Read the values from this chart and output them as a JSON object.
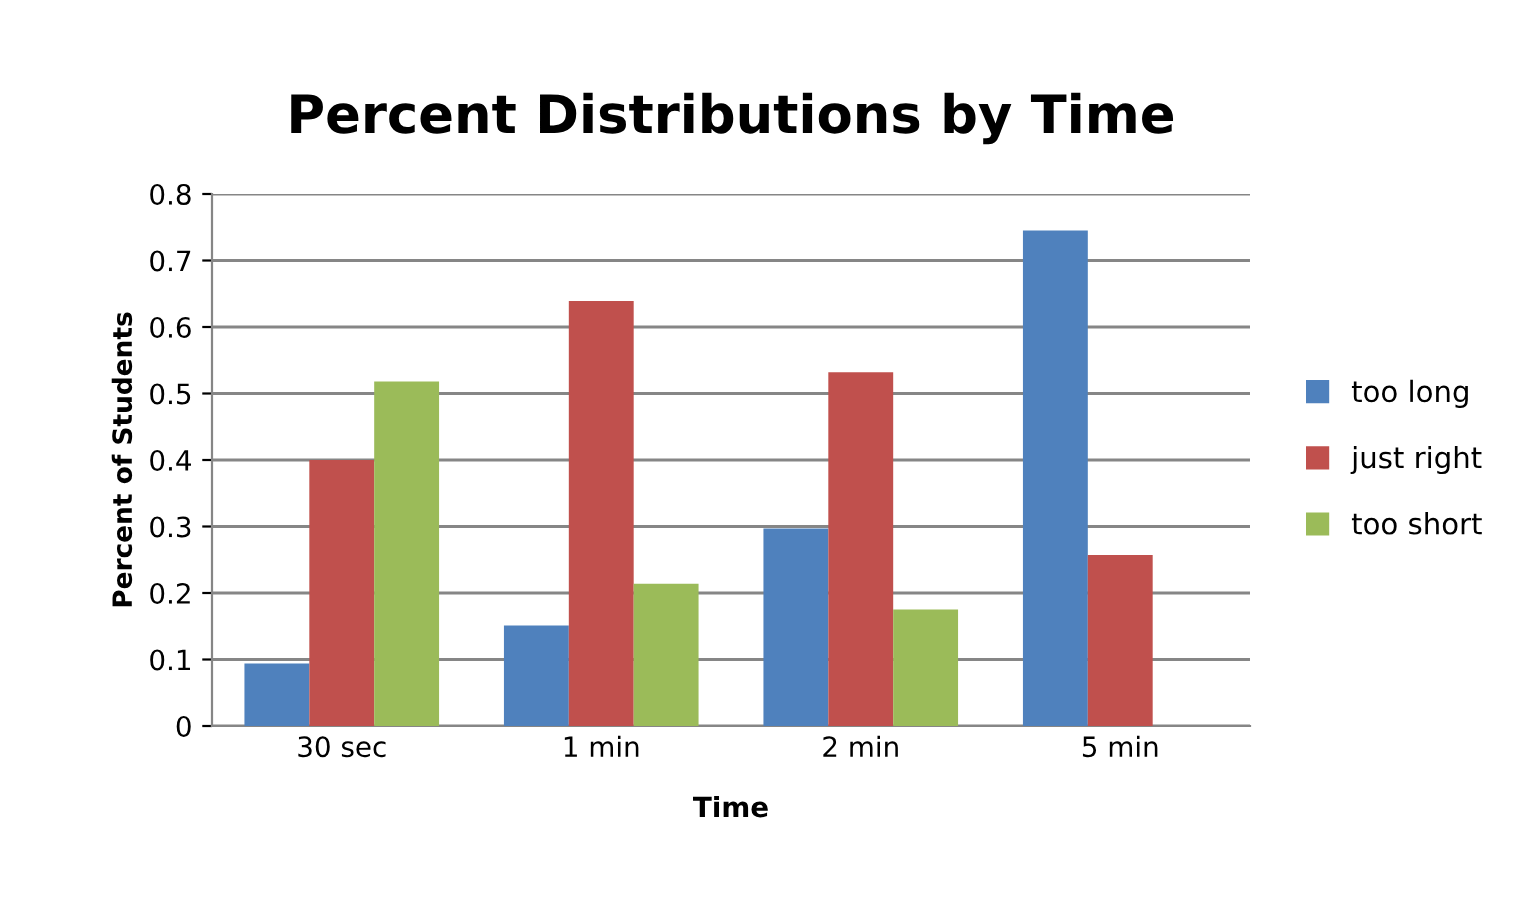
{
  "chart_data": {
    "type": "bar",
    "title": "Percent Distributions by Time",
    "xlabel": "Time",
    "ylabel": "Percent of Students",
    "categories": [
      "30 sec",
      "1 min",
      "2 min",
      "5 min"
    ],
    "series": [
      {
        "name": "too long",
        "color": "#4f81bd",
        "values": [
          0.094,
          0.151,
          0.297,
          0.745
        ]
      },
      {
        "name": "just right",
        "color": "#c0504d",
        "values": [
          0.4,
          0.639,
          0.532,
          0.257
        ]
      },
      {
        "name": "too short",
        "color": "#9bbb59",
        "values": [
          0.518,
          0.214,
          0.175,
          null
        ]
      }
    ],
    "ylim": [
      0,
      0.8
    ],
    "yticks": [
      0,
      0.1,
      0.2,
      0.3,
      0.4,
      0.5,
      0.6,
      0.7,
      0.8
    ],
    "grid": "y",
    "legend": "right"
  }
}
